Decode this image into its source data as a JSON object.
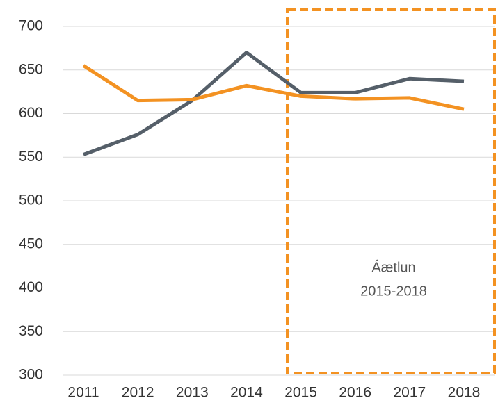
{
  "chart_data": {
    "type": "line",
    "categories": [
      "2011",
      "2012",
      "2013",
      "2014",
      "2015",
      "2016",
      "2017",
      "2018"
    ],
    "series": [
      {
        "color": "#555f69",
        "values": [
          553,
          576,
          615,
          670,
          624,
          624,
          640,
          637
        ]
      },
      {
        "color": "#f39222",
        "values": [
          655,
          615,
          616,
          632,
          620,
          617,
          618,
          605
        ]
      }
    ],
    "ylim": [
      300,
      700
    ],
    "yticks": [
      300,
      350,
      400,
      450,
      500,
      550,
      600,
      650,
      700
    ],
    "grid": true,
    "annotation": [
      "Áætlun",
      "2015-2018"
    ]
  }
}
